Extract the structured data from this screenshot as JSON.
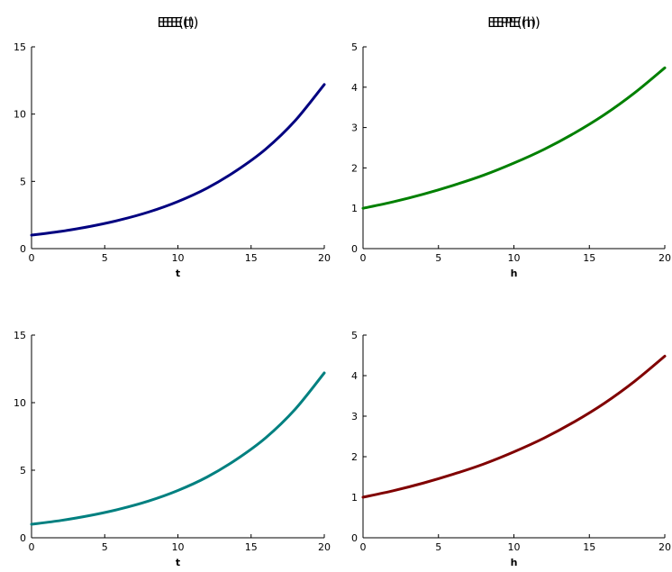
{
  "chart_data": [
    {
      "type": "line",
      "title": "EE(t)",
      "xlabel": "t",
      "ylabel": "",
      "xlim": [
        0,
        20
      ],
      "ylim": [
        0,
        15
      ],
      "xticks": [
        0,
        5,
        10,
        15,
        20
      ],
      "yticks": [
        0,
        5,
        10,
        15
      ],
      "grid": false,
      "color": "#000080",
      "series": [
        {
          "x": [
            0,
            2,
            4,
            6,
            8,
            10,
            12,
            14,
            16,
            18,
            20
          ],
          "values": [
            1.0,
            1.28,
            1.65,
            2.12,
            2.72,
            3.5,
            4.5,
            5.8,
            7.4,
            9.5,
            12.2
          ]
        }
      ]
    },
    {
      "type": "line",
      "title": "EPE(h)",
      "xlabel": "h",
      "ylabel": "",
      "xlim": [
        0,
        20
      ],
      "ylim": [
        0,
        5
      ],
      "xticks": [
        0,
        5,
        10,
        15,
        20
      ],
      "yticks": [
        0,
        1,
        2,
        3,
        4,
        5
      ],
      "grid": false,
      "color": "#008000",
      "series": [
        {
          "x": [
            0,
            2,
            4,
            6,
            8,
            10,
            12,
            14,
            16,
            18,
            20
          ],
          "values": [
            1.0,
            1.16,
            1.35,
            1.57,
            1.82,
            2.12,
            2.46,
            2.86,
            3.32,
            3.86,
            4.48
          ]
        }
      ]
    },
    {
      "type": "line",
      "title": "EEE(t)",
      "xlabel": "t",
      "ylabel": "",
      "xlim": [
        0,
        20
      ],
      "ylim": [
        0,
        15
      ],
      "xticks": [
        0,
        5,
        10,
        15,
        20
      ],
      "yticks": [
        0,
        5,
        10,
        15
      ],
      "grid": false,
      "color": "#008080",
      "series": [
        {
          "x": [
            0,
            2,
            4,
            6,
            8,
            10,
            12,
            14,
            16,
            18,
            20
          ],
          "values": [
            1.0,
            1.28,
            1.65,
            2.12,
            2.72,
            3.5,
            4.5,
            5.8,
            7.4,
            9.5,
            12.2
          ]
        }
      ]
    },
    {
      "type": "line",
      "title": "EEPE(h)",
      "xlabel": "h",
      "ylabel": "",
      "xlim": [
        0,
        20
      ],
      "ylim": [
        0,
        5
      ],
      "xticks": [
        0,
        5,
        10,
        15,
        20
      ],
      "yticks": [
        0,
        1,
        2,
        3,
        4,
        5
      ],
      "grid": false,
      "color": "#800000",
      "series": [
        {
          "x": [
            0,
            2,
            4,
            6,
            8,
            10,
            12,
            14,
            16,
            18,
            20
          ],
          "values": [
            1.0,
            1.16,
            1.35,
            1.57,
            1.82,
            2.12,
            2.46,
            2.86,
            3.32,
            3.86,
            4.48
          ]
        }
      ]
    }
  ]
}
